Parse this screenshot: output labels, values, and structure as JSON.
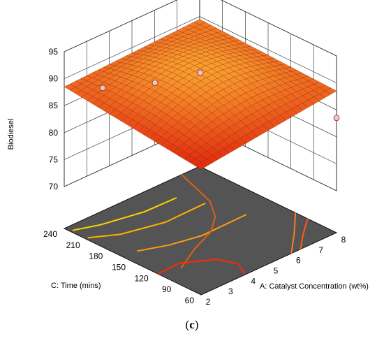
{
  "chart_data": {
    "type": "surface3d",
    "z_axis": {
      "label": "Biodiesel",
      "ticks": [
        "70",
        "75",
        "80",
        "85",
        "90",
        "95"
      ],
      "range": [
        70,
        95
      ]
    },
    "x_axis": {
      "label": "A: Catalyst Concentration (wt%)",
      "ticks": [
        "2",
        "3",
        "4",
        "5",
        "6",
        "7",
        "8"
      ],
      "range": [
        2,
        8
      ]
    },
    "y_axis": {
      "label": "C: Time  (mins)",
      "ticks": [
        "60",
        "90",
        "120",
        "150",
        "180",
        "210",
        "240"
      ],
      "range": [
        60,
        240
      ]
    },
    "surface_corners": [
      {
        "x": 2,
        "y": 60,
        "z": 85.5
      },
      {
        "x": 8,
        "y": 60,
        "z": 88.5
      },
      {
        "x": 2,
        "y": 240,
        "z": 88.5
      },
      {
        "x": 8,
        "y": 240,
        "z": 89.5
      }
    ],
    "design_points": [
      {
        "x": 5,
        "y": 150,
        "z": 91.5
      },
      {
        "x": 4,
        "y": 180,
        "z": 89.5
      },
      {
        "x": 3.2,
        "y": 225,
        "z": 87.0
      },
      {
        "x": 8,
        "y": 60,
        "z": 83.5
      }
    ],
    "contours": "projected on floor",
    "grid": true
  },
  "caption": {
    "open": "(",
    "label": "c",
    "close": ")"
  },
  "colors": {
    "floor": "#545454",
    "gridline": "#222222",
    "surface_low": "#e0200a",
    "surface_high": "#ffc040",
    "point_fill": "#f6c2c2"
  }
}
